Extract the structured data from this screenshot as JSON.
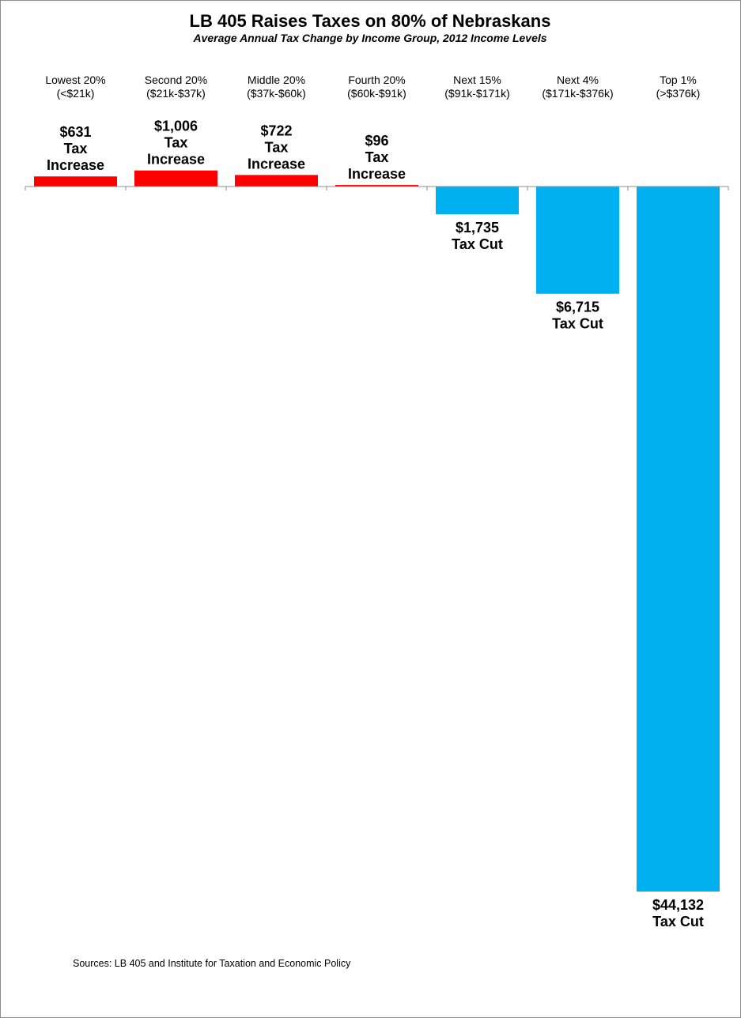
{
  "chart_data": {
    "type": "bar",
    "title": "LB 405 Raises Taxes on 80%  of Nebraskans",
    "subtitle": "Average Annual Tax Change by Income Group, 2012 Income Levels",
    "categories": [
      {
        "name": "Lowest 20%",
        "range": "(<$21k)"
      },
      {
        "name": "Second 20%",
        "range": "($21k-$37k)"
      },
      {
        "name": "Middle 20%",
        "range": "($37k-$60k)"
      },
      {
        "name": "Fourth 20%",
        "range": "($60k-$91k)"
      },
      {
        "name": "Next 15%",
        "range": "($91k-$171k)"
      },
      {
        "name": "Next 4%",
        "range": "($171k-$376k)"
      },
      {
        "name": "Top 1%",
        "range": "(>$376k)"
      }
    ],
    "values": [
      631,
      1006,
      722,
      96,
      -1735,
      -6715,
      -44132
    ],
    "data_labels": [
      [
        "$631",
        "Tax",
        "Increase"
      ],
      [
        "$1,006",
        "Tax",
        "Increase"
      ],
      [
        "$722",
        "Tax",
        "Increase"
      ],
      [
        "$96",
        "Tax",
        "Increase"
      ],
      [
        "$1,735",
        "Tax Cut"
      ],
      [
        "$6,715",
        "Tax Cut"
      ],
      [
        "$44,132",
        "Tax Cut"
      ]
    ],
    "colors": {
      "increase": "#ff0000",
      "cut": "#00b0f0",
      "axis": "#8c8c8c"
    },
    "xlabel": "",
    "ylabel": "",
    "grid": false,
    "legend": "none",
    "source": "Sources: LB 405  and Institute for Taxation and Economic Policy"
  }
}
